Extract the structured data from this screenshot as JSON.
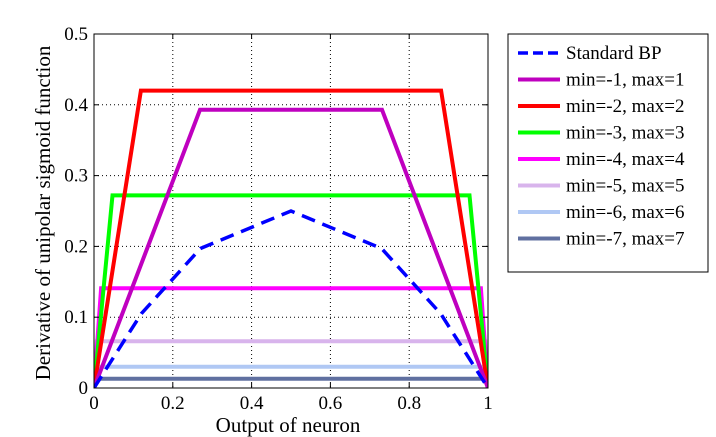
{
  "chart_data": {
    "type": "line",
    "xlabel": "Output of neuron",
    "ylabel": "Derivative of unipolar sigmoid function",
    "xlim": [
      0,
      1
    ],
    "ylim": [
      0,
      0.5
    ],
    "xticks": [
      0,
      0.2,
      0.4,
      0.6,
      0.8,
      1
    ],
    "yticks": [
      0,
      0.1,
      0.2,
      0.3,
      0.4,
      0.5
    ],
    "xtick_labels": [
      "0",
      "0.2",
      "0.4",
      "0.6",
      "0.8",
      "1"
    ],
    "ytick_labels": [
      "0",
      "0.1",
      "0.2",
      "0.3",
      "0.4",
      "0.5"
    ],
    "grid": true,
    "legend_position": "outside-right-top",
    "series": [
      {
        "name": "Standard BP",
        "color": "#0000ff",
        "style": "dashed",
        "x": [
          0,
          0.12,
          0.27,
          0.5,
          0.73,
          0.88,
          1
        ],
        "y": [
          0.0,
          0.105,
          0.197,
          0.25,
          0.197,
          0.105,
          0.0
        ]
      },
      {
        "name": "min=-1, max=1",
        "color": "#bf00bf",
        "style": "solid",
        "x": [
          0,
          0.269,
          0.731,
          1
        ],
        "y": [
          0.0,
          0.393,
          0.393,
          0.0
        ]
      },
      {
        "name": "min=-2, max=2",
        "color": "#ff0000",
        "style": "solid",
        "x": [
          0,
          0.119,
          0.881,
          1
        ],
        "y": [
          0.0,
          0.42,
          0.42,
          0.0
        ]
      },
      {
        "name": "min=-3, max=3",
        "color": "#00ff00",
        "style": "solid",
        "x": [
          0,
          0.047,
          0.953,
          1
        ],
        "y": [
          0.0,
          0.272,
          0.272,
          0.0
        ]
      },
      {
        "name": "min=-4, max=4",
        "color": "#ff00ff",
        "style": "solid",
        "x": [
          0,
          0.018,
          0.982,
          1
        ],
        "y": [
          0.0,
          0.141,
          0.141,
          0.0
        ]
      },
      {
        "name": "min=-5, max=5",
        "color": "#d8b4ec",
        "style": "solid",
        "x": [
          0,
          0.007,
          0.993,
          1
        ],
        "y": [
          0.0,
          0.066,
          0.066,
          0.0
        ]
      },
      {
        "name": "min=-6, max=6",
        "color": "#b0c8f4",
        "style": "solid",
        "x": [
          0,
          0.002,
          0.998,
          1
        ],
        "y": [
          0.0,
          0.03,
          0.03,
          0.0
        ]
      },
      {
        "name": "min=-7, max=7",
        "color": "#6070a0",
        "style": "solid",
        "x": [
          0,
          0.001,
          0.999,
          1
        ],
        "y": [
          0.0,
          0.013,
          0.013,
          0.0
        ]
      }
    ]
  }
}
